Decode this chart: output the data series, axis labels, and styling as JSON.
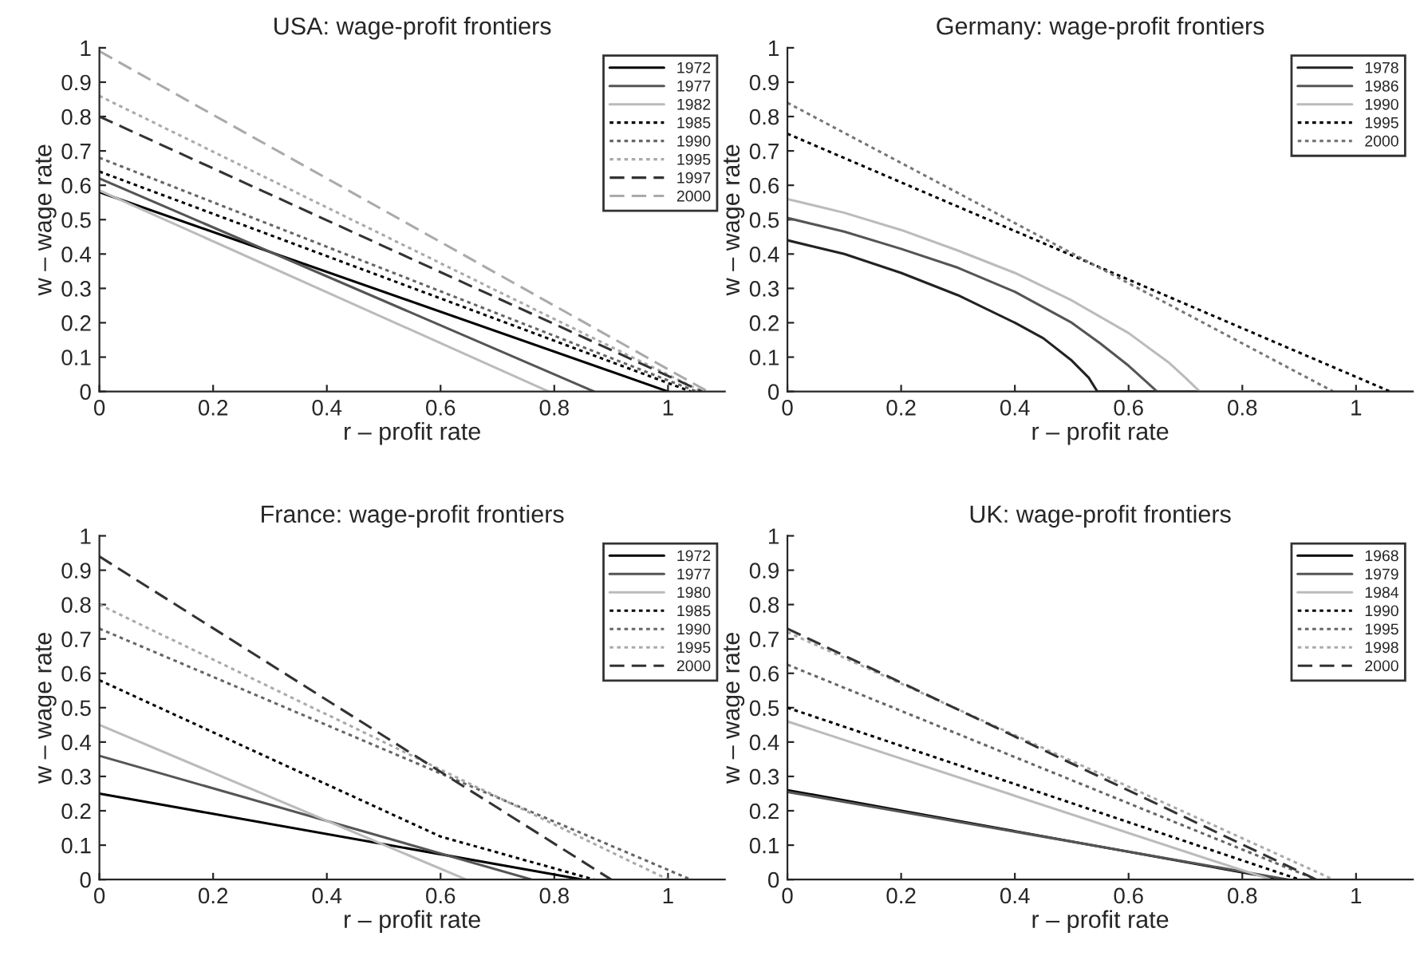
{
  "chart_data": [
    {
      "type": "line",
      "title": "USA: wage-profit frontiers",
      "xlabel": "r – profit rate",
      "ylabel": "w – wage rate",
      "xlim": [
        0,
        1.1
      ],
      "ylim": [
        0,
        1
      ],
      "xticks": [
        0,
        0.2,
        0.4,
        0.6,
        0.8,
        1
      ],
      "yticks": [
        0,
        0.1,
        0.2,
        0.3,
        0.4,
        0.5,
        0.6,
        0.7,
        0.8,
        0.9,
        1
      ],
      "grid": false,
      "legend": "top right",
      "series": [
        {
          "name": "1972",
          "color": "#000000",
          "line_style": "solid",
          "x": [
            0,
            1.0
          ],
          "values": [
            0.58,
            0
          ]
        },
        {
          "name": "1977",
          "color": "#555555",
          "line_style": "solid",
          "x": [
            0,
            0.87
          ],
          "values": [
            0.62,
            0
          ]
        },
        {
          "name": "1982",
          "color": "#bbbbbb",
          "line_style": "solid",
          "x": [
            0,
            0.79
          ],
          "values": [
            0.585,
            0
          ]
        },
        {
          "name": "1985",
          "color": "#000000",
          "line_style": "dotted",
          "x": [
            0,
            1.04
          ],
          "values": [
            0.64,
            0
          ]
        },
        {
          "name": "1990",
          "color": "#666666",
          "line_style": "dotted",
          "x": [
            0,
            1.05
          ],
          "values": [
            0.68,
            0
          ]
        },
        {
          "name": "1995",
          "color": "#aaaaaa",
          "line_style": "dotted",
          "x": [
            0,
            1.06
          ],
          "values": [
            0.86,
            0
          ]
        },
        {
          "name": "1997",
          "color": "#333333",
          "line_style": "dashed",
          "x": [
            0,
            1.06
          ],
          "values": [
            0.8,
            0
          ]
        },
        {
          "name": "2000",
          "color": "#aaaaaa",
          "line_style": "dashed",
          "x": [
            0,
            1.07
          ],
          "values": [
            0.99,
            0
          ]
        }
      ]
    },
    {
      "type": "line",
      "title": "Germany: wage-profit frontiers",
      "xlabel": "r – profit rate",
      "ylabel": "w – wage rate",
      "xlim": [
        0,
        1.1
      ],
      "ylim": [
        0,
        1
      ],
      "xticks": [
        0,
        0.2,
        0.4,
        0.6,
        0.8,
        1
      ],
      "yticks": [
        0,
        0.1,
        0.2,
        0.3,
        0.4,
        0.5,
        0.6,
        0.7,
        0.8,
        0.9,
        1
      ],
      "grid": false,
      "legend": "top right",
      "series": [
        {
          "name": "1978",
          "color": "#222222",
          "line_style": "solid",
          "x": [
            0,
            0.1,
            0.2,
            0.3,
            0.4,
            0.45,
            0.5,
            0.53,
            0.545,
            1.1
          ],
          "values": [
            0.44,
            0.4,
            0.345,
            0.28,
            0.2,
            0.155,
            0.09,
            0.04,
            0,
            0
          ]
        },
        {
          "name": "1986",
          "color": "#555555",
          "line_style": "solid",
          "x": [
            0,
            0.1,
            0.2,
            0.3,
            0.4,
            0.5,
            0.55,
            0.6,
            0.63,
            0.65,
            1.1
          ],
          "values": [
            0.505,
            0.465,
            0.415,
            0.36,
            0.29,
            0.2,
            0.14,
            0.075,
            0.03,
            0,
            0
          ]
        },
        {
          "name": "1990",
          "color": "#bbbbbb",
          "line_style": "solid",
          "x": [
            0,
            0.1,
            0.2,
            0.3,
            0.4,
            0.5,
            0.6,
            0.67,
            0.7,
            0.725,
            1.1
          ],
          "values": [
            0.56,
            0.52,
            0.47,
            0.41,
            0.345,
            0.265,
            0.17,
            0.085,
            0.04,
            0,
            0
          ]
        },
        {
          "name": "1995",
          "color": "#000000",
          "line_style": "dotted",
          "x": [
            0,
            1.06
          ],
          "values": [
            0.75,
            0
          ]
        },
        {
          "name": "2000",
          "color": "#777777",
          "line_style": "dotted",
          "x": [
            0,
            0.96
          ],
          "values": [
            0.84,
            0
          ]
        }
      ]
    },
    {
      "type": "line",
      "title": "France: wage-profit frontiers",
      "xlabel": "r – profit rate",
      "ylabel": "w – wage rate",
      "xlim": [
        0,
        1.1
      ],
      "ylim": [
        0,
        1
      ],
      "xticks": [
        0,
        0.2,
        0.4,
        0.6,
        0.8,
        1
      ],
      "yticks": [
        0,
        0.1,
        0.2,
        0.3,
        0.4,
        0.5,
        0.6,
        0.7,
        0.8,
        0.9,
        1
      ],
      "grid": false,
      "legend": "top right",
      "series": [
        {
          "name": "1972",
          "color": "#000000",
          "line_style": "solid",
          "x": [
            0,
            0.85
          ],
          "values": [
            0.25,
            0
          ]
        },
        {
          "name": "1977",
          "color": "#555555",
          "line_style": "solid",
          "x": [
            0,
            0.76
          ],
          "values": [
            0.36,
            0
          ]
        },
        {
          "name": "1980",
          "color": "#bbbbbb",
          "line_style": "solid",
          "x": [
            0,
            0.645
          ],
          "values": [
            0.45,
            0
          ]
        },
        {
          "name": "1985",
          "color": "#000000",
          "line_style": "dotted",
          "x": [
            0,
            0.6,
            0.87
          ],
          "values": [
            0.58,
            0.125,
            0
          ]
        },
        {
          "name": "1990",
          "color": "#666666",
          "line_style": "dotted",
          "x": [
            0,
            1.04
          ],
          "values": [
            0.73,
            0
          ]
        },
        {
          "name": "1995",
          "color": "#aaaaaa",
          "line_style": "dotted",
          "x": [
            0,
            1.0
          ],
          "values": [
            0.8,
            0
          ]
        },
        {
          "name": "2000",
          "color": "#333333",
          "line_style": "dashed",
          "x": [
            0,
            0.9
          ],
          "values": [
            0.94,
            0
          ]
        }
      ]
    },
    {
      "type": "line",
      "title": "UK: wage-profit frontiers",
      "xlabel": "r – profit rate",
      "ylabel": "w – wage rate",
      "xlim": [
        0,
        1.1
      ],
      "ylim": [
        0,
        1
      ],
      "xticks": [
        0,
        0.2,
        0.4,
        0.6,
        0.8,
        1
      ],
      "yticks": [
        0,
        0.1,
        0.2,
        0.3,
        0.4,
        0.5,
        0.6,
        0.7,
        0.8,
        0.9,
        1
      ],
      "grid": false,
      "legend": "top right",
      "series": [
        {
          "name": "1968",
          "color": "#000000",
          "line_style": "solid",
          "x": [
            0,
            0.87
          ],
          "values": [
            0.26,
            0
          ]
        },
        {
          "name": "1979",
          "color": "#555555",
          "line_style": "solid",
          "x": [
            0,
            0.88
          ],
          "values": [
            0.255,
            0
          ]
        },
        {
          "name": "1984",
          "color": "#bbbbbb",
          "line_style": "solid",
          "x": [
            0,
            0.85
          ],
          "values": [
            0.46,
            0
          ]
        },
        {
          "name": "1990",
          "color": "#000000",
          "line_style": "dotted",
          "x": [
            0,
            0.9
          ],
          "values": [
            0.5,
            0
          ]
        },
        {
          "name": "1995",
          "color": "#666666",
          "line_style": "dotted",
          "x": [
            0,
            0.93
          ],
          "values": [
            0.625,
            0
          ]
        },
        {
          "name": "1998",
          "color": "#aaaaaa",
          "line_style": "dotted",
          "x": [
            0,
            0.96
          ],
          "values": [
            0.72,
            0
          ]
        },
        {
          "name": "2000",
          "color": "#333333",
          "line_style": "dashed",
          "x": [
            0,
            0.93
          ],
          "values": [
            0.73,
            0
          ]
        }
      ]
    }
  ]
}
